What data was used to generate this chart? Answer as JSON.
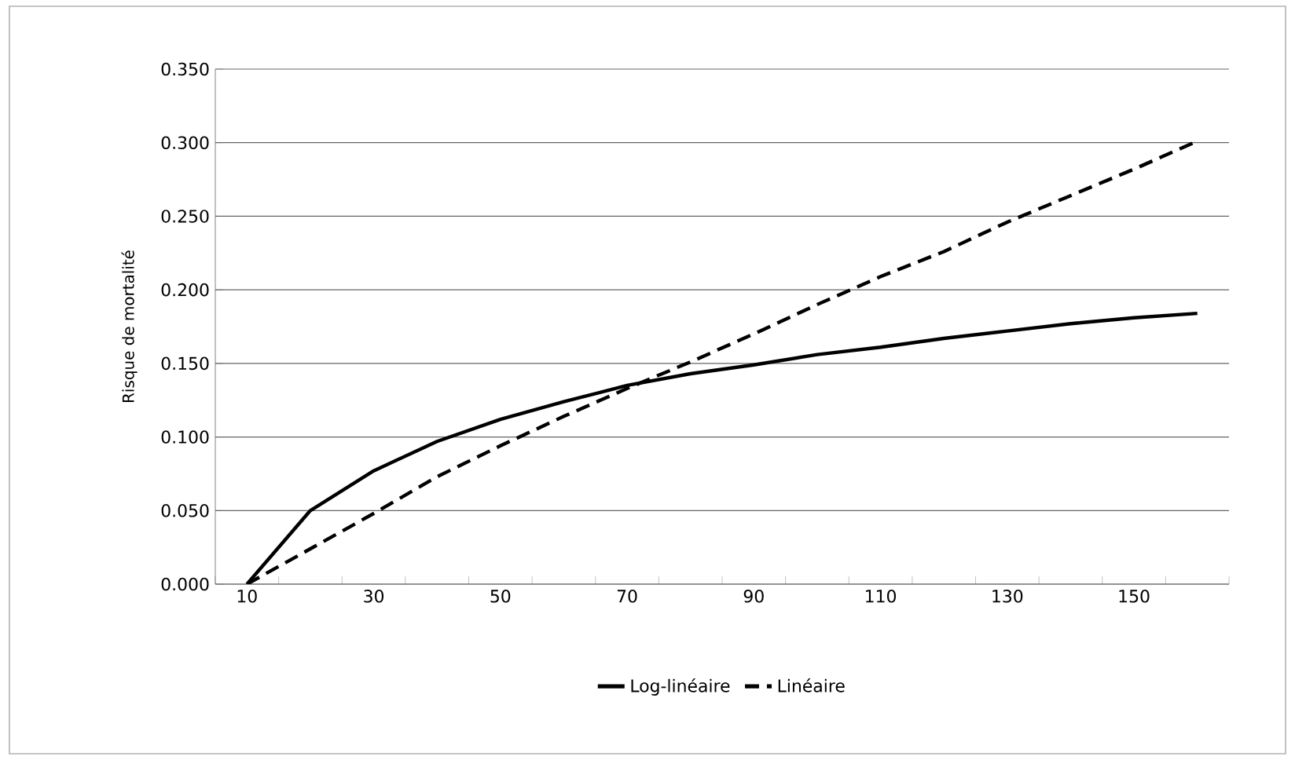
{
  "chart_data": {
    "type": "line",
    "ylabel": "Risque de mortalité",
    "categories": [
      "10",
      null,
      "30",
      null,
      "50",
      null,
      "70",
      null,
      "90",
      null,
      "110",
      null,
      "130",
      null,
      "150",
      null
    ],
    "series": [
      {
        "name": "Log-linéaire",
        "color": "#000000",
        "line_style": "solid",
        "values": [
          0,
          0.05,
          0.077,
          0.097,
          0.112,
          0.124,
          0.135,
          0.143,
          0.149,
          0.156,
          0.161,
          0.167,
          0.172,
          0.177,
          0.181,
          0.184
        ]
      },
      {
        "name": "Linéaire",
        "color": "#000000",
        "line_style": "dashed",
        "values": [
          0,
          0.024,
          0.048,
          0.073,
          0.094,
          0.114,
          0.133,
          0.151,
          0.17,
          0.19,
          0.209,
          0.226,
          0.246,
          0.264,
          0.282,
          0.301
        ]
      }
    ],
    "ylim": [
      0,
      0.35
    ],
    "yticks": [
      {
        "value": 0,
        "label": "0.000"
      },
      {
        "value": 0.05,
        "label": "0.050"
      },
      {
        "value": 0.1,
        "label": "0.100"
      },
      {
        "value": 0.15,
        "label": "0.150"
      },
      {
        "value": 0.2,
        "label": "0.200"
      },
      {
        "value": 0.25,
        "label": "0.250"
      },
      {
        "value": 0.3,
        "label": "0.300"
      },
      {
        "value": 0.35,
        "label": "0.350"
      }
    ],
    "grid": "y",
    "legend": "bottom",
    "marker": "none"
  }
}
